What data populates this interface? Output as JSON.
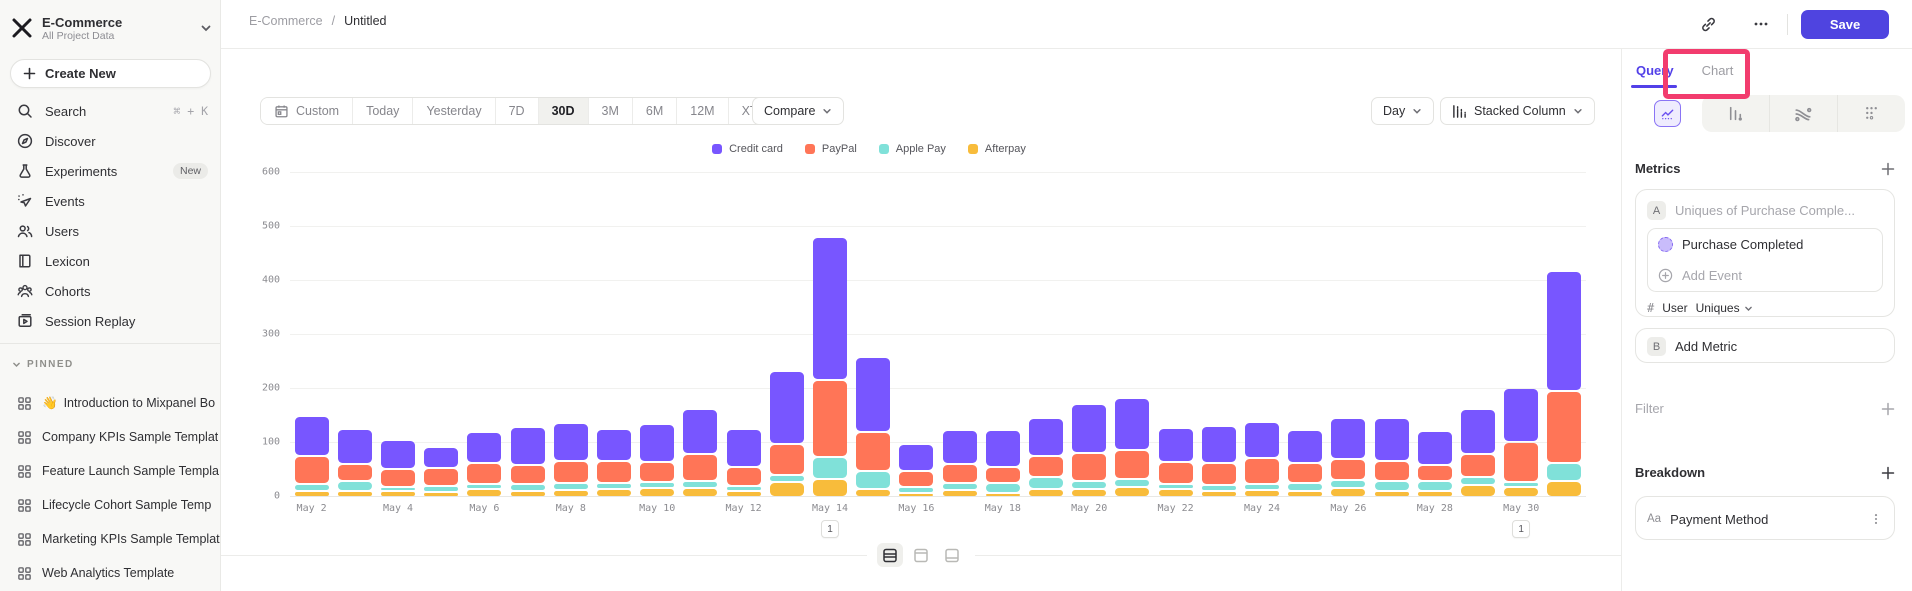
{
  "colors": {
    "accent": "#4f44e0",
    "query_accent": "#5240e8",
    "highlight": "#f23c6e"
  },
  "sidebar": {
    "workspace": {
      "name": "E-Commerce",
      "subtitle": "All Project Data"
    },
    "create_new_label": "Create New",
    "nav": [
      {
        "icon": "search-icon",
        "label": "Search",
        "shortcut": "⌘ + K"
      },
      {
        "icon": "compass-icon",
        "label": "Discover"
      },
      {
        "icon": "flask-icon",
        "label": "Experiments",
        "badge": "New"
      },
      {
        "icon": "spark-icon",
        "label": "Events"
      },
      {
        "icon": "users-icon",
        "label": "Users"
      },
      {
        "icon": "book-icon",
        "label": "Lexicon"
      },
      {
        "icon": "cohorts-icon",
        "label": "Cohorts"
      },
      {
        "icon": "replay-icon",
        "label": "Session Replay"
      }
    ],
    "pinned_header": "PINNED",
    "pinned": [
      {
        "emoji": "👋",
        "label": "Introduction to Mixpanel Bo"
      },
      {
        "emoji": "",
        "label": "Company KPIs Sample Templat"
      },
      {
        "emoji": "",
        "label": "Feature Launch Sample Templa"
      },
      {
        "emoji": "",
        "label": "Lifecycle Cohort Sample Temp"
      },
      {
        "emoji": "",
        "label": "Marketing KPIs Sample Templat"
      },
      {
        "emoji": "",
        "label": "Web Analytics Template"
      }
    ]
  },
  "header": {
    "breadcrumb_root": "E-Commerce",
    "breadcrumb_sep": "/",
    "breadcrumb_current": "Untitled",
    "save_label": "Save"
  },
  "toolbar": {
    "date_ranges": [
      "Custom",
      "Today",
      "Yesterday",
      "7D",
      "30D",
      "3M",
      "6M",
      "12M",
      "XTD"
    ],
    "selected_range": "30D",
    "compare_label": "Compare",
    "granularity_label": "Day",
    "chart_type_label": "Stacked Column"
  },
  "panel": {
    "tab_query": "Query",
    "tab_chart": "Chart",
    "metrics_title": "Metrics",
    "metric_a": {
      "badge": "A",
      "placeholder": "Uniques of Purchase Comple...",
      "event_name": "Purchase Completed",
      "add_event_label": "Add Event",
      "measure_symbol": "#",
      "measure_entity": "User",
      "measure_type": "Uniques"
    },
    "metric_b": {
      "badge": "B",
      "label": "Add Metric"
    },
    "filter_label": "Filter",
    "breakdown_label": "Breakdown",
    "breakdown_item": {
      "prefix": "Aa",
      "label": "Payment Method"
    }
  },
  "annotations": [
    {
      "label": "1",
      "date": "May 14"
    },
    {
      "label": "1",
      "date": "May 30"
    }
  ],
  "chart_data": {
    "type": "bar",
    "stacked": true,
    "title": "",
    "xlabel": "",
    "ylabel": "",
    "ylim": [
      0,
      600
    ],
    "ytick_step": 100,
    "grid": true,
    "legend_position": "top",
    "x": [
      "May 2",
      "May 3",
      "May 4",
      "May 5",
      "May 6",
      "May 7",
      "May 8",
      "May 9",
      "May 10",
      "May 11",
      "May 12",
      "May 13",
      "May 14",
      "May 15",
      "May 16",
      "May 17",
      "May 18",
      "May 19",
      "May 20",
      "May 21",
      "May 22",
      "May 23",
      "May 24",
      "May 25",
      "May 26",
      "May 27",
      "May 28",
      "May 29",
      "May 30",
      "May 31"
    ],
    "x_labeled_every": 2,
    "stack_order_bottom_to_top": [
      "Afterpay",
      "Apple Pay",
      "PayPal",
      "Credit card"
    ],
    "series": [
      {
        "name": "Credit card",
        "color": "#7856ff",
        "values": [
          74,
          65,
          54,
          39,
          57,
          71,
          70,
          59,
          70,
          83,
          70,
          135,
          264,
          139,
          50,
          63,
          68,
          70,
          91,
          96,
          63,
          68,
          67,
          61,
          76,
          79,
          63,
          83,
          100,
          222
        ]
      },
      {
        "name": "PayPal",
        "color": "#ff7557",
        "values": [
          52,
          31,
          33,
          34,
          39,
          35,
          41,
          41,
          37,
          50,
          36,
          57,
          143,
          72,
          29,
          35,
          30,
          39,
          51,
          54,
          41,
          41,
          48,
          37,
          39,
          37,
          29,
          43,
          74,
          133
        ]
      },
      {
        "name": "Apple Pay",
        "color": "#80e1d9",
        "values": [
          13,
          19,
          8,
          11,
          9,
          13,
          13,
          11,
          11,
          13,
          9,
          13,
          41,
          33,
          12,
          13,
          19,
          22,
          15,
          14,
          9,
          11,
          11,
          15,
          14,
          19,
          19,
          15,
          10,
          33
        ]
      },
      {
        "name": "Afterpay",
        "color": "#f8bc3b",
        "values": [
          11,
          11,
          11,
          9,
          15,
          11,
          13,
          15,
          17,
          17,
          11,
          28,
          33,
          15,
          7,
          13,
          7,
          15,
          15,
          19,
          15,
          11,
          13,
          11,
          17,
          11,
          11,
          22,
          18,
          30
        ]
      }
    ]
  }
}
